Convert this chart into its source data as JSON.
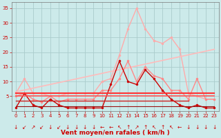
{
  "xlabel": "Vent moyen/en rafales ( km/h )",
  "x_ticks": [
    0,
    1,
    2,
    3,
    4,
    5,
    6,
    7,
    8,
    9,
    10,
    11,
    12,
    13,
    14,
    15,
    16,
    17,
    18,
    19,
    20,
    21,
    22,
    23
  ],
  "ylim": [
    0,
    37
  ],
  "yticks": [
    5,
    10,
    15,
    20,
    25,
    30,
    35
  ],
  "bg_color": "#cceaea",
  "grid_color": "#aacccc",
  "series": [
    {
      "label": "rafales_light",
      "x": [
        0,
        1,
        2,
        3,
        4,
        5,
        6,
        7,
        8,
        9,
        10,
        11,
        12,
        13,
        14,
        15,
        16,
        17,
        18,
        19,
        20,
        21,
        22,
        23
      ],
      "y": [
        6,
        11,
        6,
        6,
        5,
        5,
        6,
        6,
        6,
        6,
        10,
        11,
        19,
        28,
        35,
        28,
        24,
        23,
        25,
        21,
        6,
        5,
        4,
        4
      ],
      "color": "#ffaaaa",
      "lw": 1.0,
      "marker": "o",
      "ms": 2.0
    },
    {
      "label": "trend_rafales",
      "x": [
        0,
        23
      ],
      "y": [
        6.5,
        21
      ],
      "color": "#ffbbbb",
      "lw": 1.2,
      "marker": null,
      "ms": 0
    },
    {
      "label": "vent_moyen_light",
      "x": [
        0,
        1,
        2,
        3,
        4,
        5,
        6,
        7,
        8,
        9,
        10,
        11,
        12,
        13,
        14,
        15,
        16,
        17,
        18,
        19,
        20,
        21,
        22,
        23
      ],
      "y": [
        5,
        6,
        4,
        3,
        5,
        3,
        4,
        4,
        4,
        4,
        7,
        7,
        11,
        17,
        10,
        15,
        12,
        11,
        7,
        7,
        4,
        11,
        4,
        4
      ],
      "color": "#ff8888",
      "lw": 1.0,
      "marker": "o",
      "ms": 2.0
    },
    {
      "label": "vent_moyen_dark",
      "x": [
        0,
        1,
        2,
        3,
        4,
        5,
        6,
        7,
        8,
        9,
        10,
        11,
        12,
        13,
        14,
        15,
        16,
        17,
        18,
        19,
        20,
        21,
        22,
        23
      ],
      "y": [
        1,
        6,
        2,
        1,
        4,
        2,
        1,
        1,
        1,
        1,
        1,
        9,
        17,
        10,
        9,
        14,
        11,
        7,
        4,
        2,
        1,
        2,
        1,
        1
      ],
      "color": "#cc0000",
      "lw": 1.0,
      "marker": "o",
      "ms": 2.0
    },
    {
      "label": "flat_high1",
      "x": [
        0,
        23
      ],
      "y": [
        6,
        6
      ],
      "color": "#ff3333",
      "lw": 1.5,
      "marker": null,
      "ms": 0
    },
    {
      "label": "flat_high2",
      "x": [
        0,
        23
      ],
      "y": [
        5,
        5
      ],
      "color": "#ff5555",
      "lw": 1.2,
      "marker": null,
      "ms": 0
    },
    {
      "label": "flat_med",
      "x": [
        0,
        20
      ],
      "y": [
        3.5,
        3.5
      ],
      "color": "#cc2222",
      "lw": 1.0,
      "marker": null,
      "ms": 0
    },
    {
      "label": "flat_low",
      "x": [
        0,
        23
      ],
      "y": [
        1.5,
        1.5
      ],
      "color": "#991111",
      "lw": 0.8,
      "marker": null,
      "ms": 0
    }
  ],
  "arrow_symbols": [
    "↓",
    "↙",
    "↗",
    "↙",
    "↓",
    "↙",
    "↓",
    "↓",
    "↓",
    "↓",
    "←",
    "←",
    "↖",
    "↑",
    "↗",
    "↑",
    "↖",
    "↑",
    "↖",
    "←",
    "↓",
    "↓",
    "↓",
    "↓"
  ],
  "arrow_color": "#cc0000",
  "arrow_fontsize": 5.5,
  "tick_labelsize": 5,
  "xlabel_fontsize": 6.5,
  "xlabel_color": "#cc0000"
}
